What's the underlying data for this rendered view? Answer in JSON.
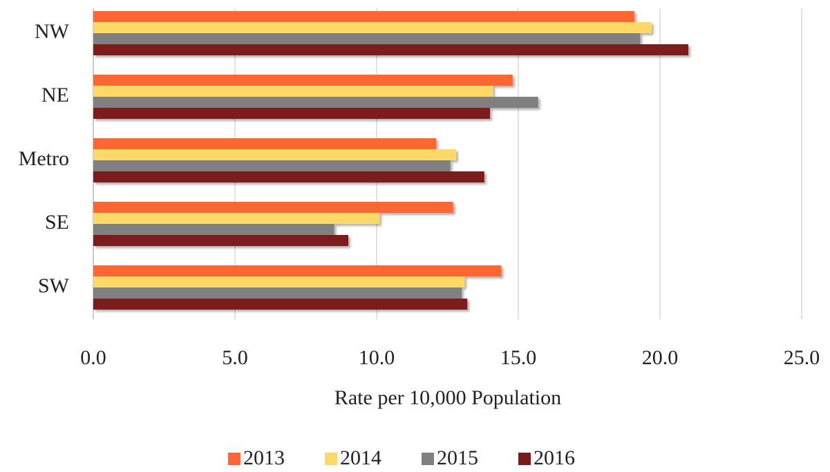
{
  "chart_data": {
    "type": "hbar",
    "categories": [
      "NW",
      "NE",
      "Metro",
      "SE",
      "SW"
    ],
    "series": [
      {
        "name": "2013",
        "color": "#ff6633",
        "values": [
          19.1,
          14.8,
          12.1,
          12.7,
          14.4
        ]
      },
      {
        "name": "2014",
        "color": "#ffd966",
        "values": [
          19.7,
          14.1,
          12.8,
          10.1,
          13.1
        ]
      },
      {
        "name": "2015",
        "color": "#808080",
        "values": [
          19.3,
          15.7,
          12.6,
          8.5,
          13.0
        ]
      },
      {
        "name": "2016",
        "color": "#7b1a1a",
        "values": [
          21.0,
          14.0,
          13.8,
          9.0,
          13.2
        ]
      }
    ],
    "xlabel": "Rate per 10,000 Population",
    "xlim": [
      0,
      25
    ],
    "xticks": [
      {
        "value": 0,
        "label": "0.0"
      },
      {
        "value": 5,
        "label": "5.0"
      },
      {
        "value": 10,
        "label": "10.0"
      },
      {
        "value": 15,
        "label": "15.0"
      },
      {
        "value": 20,
        "label": "20.0"
      },
      {
        "value": 25,
        "label": "25.0"
      }
    ],
    "grid": true,
    "legend": "bottom"
  }
}
